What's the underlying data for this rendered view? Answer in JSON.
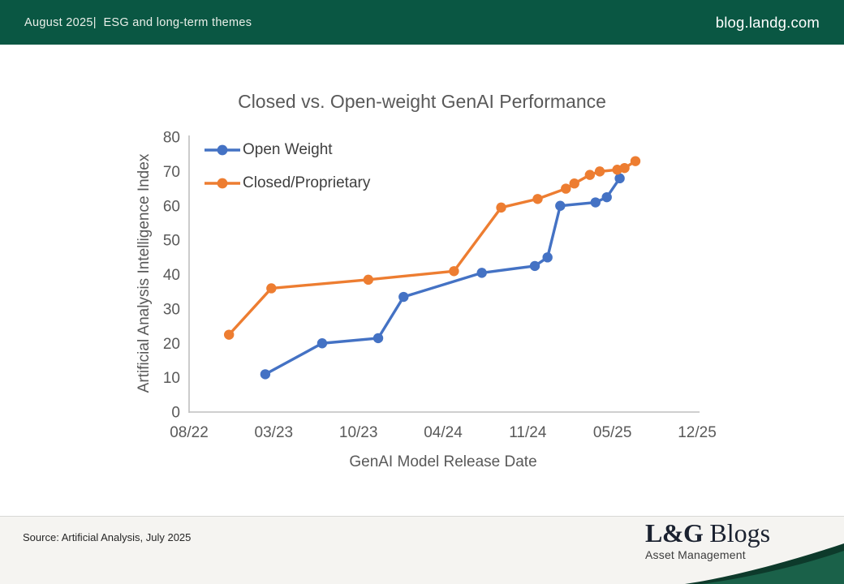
{
  "header": {
    "left_text": "August 2025|  ESG and long-term themes",
    "right_text": "blog.landg.com"
  },
  "chart_data": {
    "type": "line",
    "title": "Closed vs. Open-weight GenAI Performance",
    "xlabel": "GenAI Model Release Date",
    "ylabel": "Artificial Analysis Intelligence Index",
    "grid": false,
    "legend_position": "top-left-inside",
    "x_axis": {
      "tick_labels": [
        "08/22",
        "03/23",
        "10/23",
        "04/24",
        "11/24",
        "05/25",
        "12/25"
      ],
      "tick_months_after_aug_2022": [
        0,
        7,
        14,
        20,
        27,
        33,
        40
      ]
    },
    "y_axis": {
      "min": 0,
      "max": 80,
      "step": 10,
      "tick_labels": [
        "0",
        "10",
        "20",
        "30",
        "40",
        "50",
        "60",
        "70",
        "80"
      ]
    },
    "series": [
      {
        "name": "Open Weight",
        "color": "#4472C4",
        "points": [
          {
            "date": "02/23",
            "m": 6.3,
            "value": 11
          },
          {
            "date": "07/23",
            "m": 11.0,
            "value": 20
          },
          {
            "date": "11/23",
            "m": 15.4,
            "value": 21.5
          },
          {
            "date": "01/24",
            "m": 17.2,
            "value": 33.5
          },
          {
            "date": "07/24",
            "m": 23.2,
            "value": 40.5
          },
          {
            "date": "11/24",
            "m": 27.5,
            "value": 42.5
          },
          {
            "date": "12/24",
            "m": 28.4,
            "value": 45
          },
          {
            "date": "01/25",
            "m": 29.3,
            "value": 60
          },
          {
            "date": "04/25",
            "m": 31.8,
            "value": 61
          },
          {
            "date": "04/25",
            "m": 32.6,
            "value": 62.5
          },
          {
            "date": "05/25",
            "m": 33.6,
            "value": 68
          }
        ]
      },
      {
        "name": "Closed/Proprietary",
        "color": "#ED7D31",
        "points": [
          {
            "date": "11/22",
            "m": 3.3,
            "value": 22.5
          },
          {
            "date": "03/23",
            "m": 6.8,
            "value": 36
          },
          {
            "date": "10/23",
            "m": 14.7,
            "value": 38.5
          },
          {
            "date": "05/24",
            "m": 20.9,
            "value": 41
          },
          {
            "date": "09/24",
            "m": 24.8,
            "value": 59.5
          },
          {
            "date": "12/24",
            "m": 27.7,
            "value": 62
          },
          {
            "date": "01/25",
            "m": 29.7,
            "value": 65
          },
          {
            "date": "02/25",
            "m": 30.3,
            "value": 66.5
          },
          {
            "date": "03/25",
            "m": 31.4,
            "value": 69
          },
          {
            "date": "04/25",
            "m": 32.1,
            "value": 70
          },
          {
            "date": "05/25",
            "m": 33.4,
            "value": 70.5
          },
          {
            "date": "06/25",
            "m": 34.0,
            "value": 71
          },
          {
            "date": "07/25",
            "m": 34.9,
            "value": 73
          }
        ]
      }
    ]
  },
  "footer": {
    "source_text": "Source: Artificial Analysis, July 2025",
    "logo_bold": "L&G",
    "logo_regular": " Blogs",
    "logo_subtitle": "Asset Management"
  },
  "colors": {
    "header_green": "#0a5743",
    "wave_body_green": "#1a6149",
    "wave_edge_green": "#0d3a2b",
    "axis_line_gray": "#BFBFBF",
    "chart_text_gray": "#595959",
    "legend_text_gray": "#3f3f3f",
    "footer_bg": "#f5f4f1",
    "open_weight_blue": "#4472C4",
    "closed_proprietary_orange": "#ED7D31"
  }
}
